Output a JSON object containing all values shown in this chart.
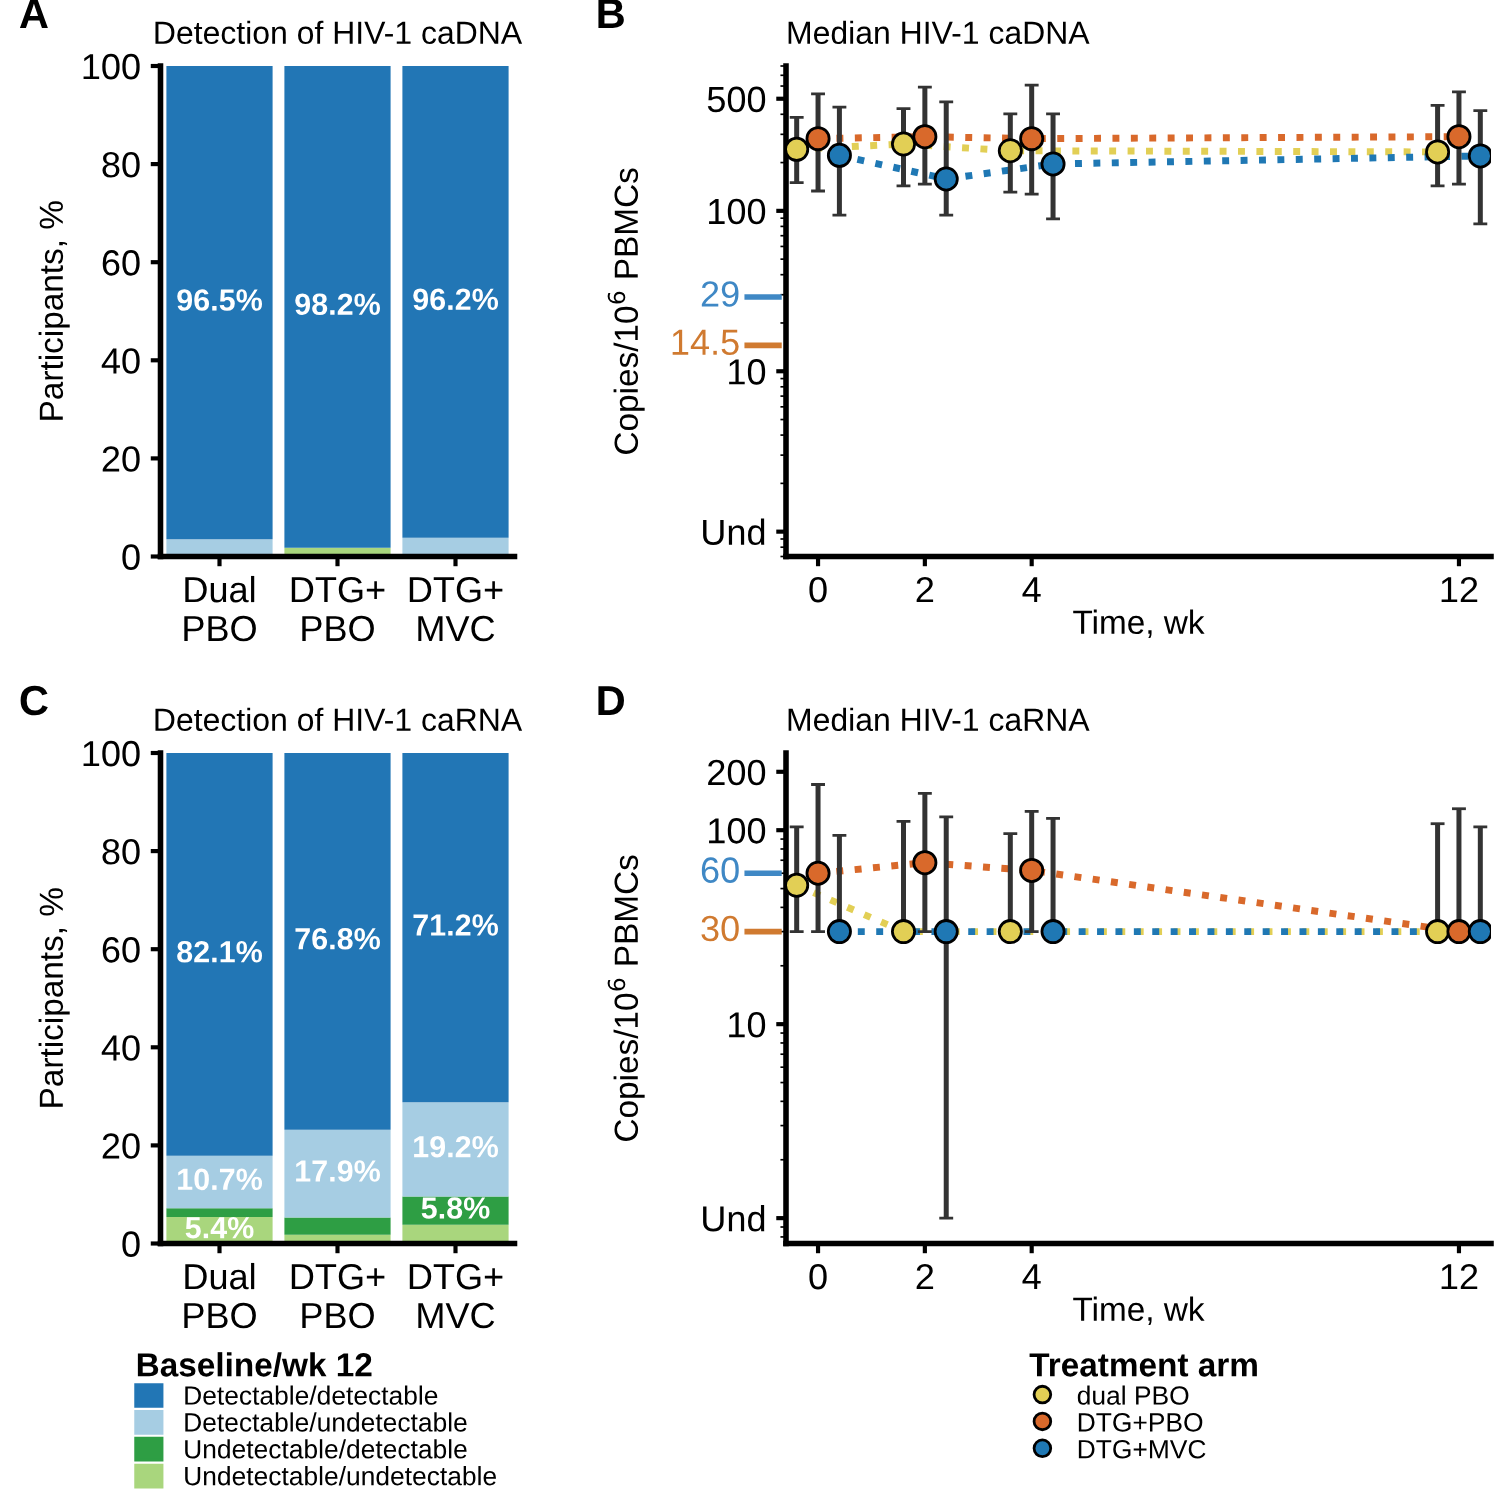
{
  "chart_data": [
    {
      "type": "bar",
      "title": "Detection of HIV-1 caDNA",
      "annotations": [
        "A"
      ],
      "categories": [
        "Dual\nPBO",
        "DTG+\nPBO",
        "DTG+\nMVC"
      ],
      "stacked": true,
      "ylabel": "Participants, %",
      "ylim": [
        0,
        100
      ],
      "yticks": [
        0,
        20,
        40,
        60,
        80,
        100
      ],
      "series": [
        {
          "color": "#a9d67d",
          "values": [
            0,
            1.8,
            0
          ],
          "value_labels": [
            null,
            null,
            null
          ]
        },
        {
          "color": "#2e9e44",
          "values": [
            0,
            0,
            0
          ],
          "value_labels": [
            null,
            null,
            null
          ]
        },
        {
          "color": "#a6cde3",
          "values": [
            3.5,
            0,
            3.8
          ],
          "value_labels": [
            null,
            null,
            null
          ]
        },
        {
          "color": "#2276b5",
          "values": [
            96.5,
            98.2,
            96.2
          ],
          "value_labels": [
            "96.5%",
            "98.2%",
            "96.2%"
          ]
        }
      ]
    },
    {
      "type": "line",
      "title": "Median HIV-1 caDNA",
      "annotations": [
        "B"
      ],
      "xlabel": "Time, wk",
      "ylabel": "Copies/10$^{6}$ PBMCs",
      "log": true,
      "xlim": [
        -0.6,
        12.6
      ],
      "xticks": [
        0,
        2,
        4,
        12
      ],
      "ylim": [
        0.7,
        800
      ],
      "yticks": [
        {
          "value": 1,
          "label": "Und"
        },
        10,
        100,
        500
      ],
      "marker": "circle",
      "line_style": "dotted",
      "legend": false,
      "ref_lines": [
        {
          "axis": "y",
          "value": 29,
          "label": "29",
          "color": "#3f88c5"
        },
        {
          "axis": "y",
          "value": 14.5,
          "label": "14.5",
          "color": "#d07a30"
        }
      ],
      "series": [
        {
          "color": "#e2cf55",
          "x": [
            -0.4,
            1.6,
            3.6,
            11.6
          ],
          "values": [
            242,
            261,
            237,
            233
          ],
          "errors": [
            [
              150,
              383
            ],
            [
              143,
              434
            ],
            [
              131,
              402
            ],
            [
              143,
              455
            ]
          ]
        },
        {
          "color": "#d9692b",
          "x": [
            0,
            2,
            4,
            12
          ],
          "values": [
            282,
            290,
            282,
            290
          ],
          "errors": [
            [
              133,
              536
            ],
            [
              147,
              590
            ],
            [
              127,
              607
            ],
            [
              147,
              552
            ]
          ]
        },
        {
          "color": "#1f78b4",
          "x": [
            0.4,
            2.4,
            4.4,
            12.4
          ],
          "values": [
            222,
            158,
            196,
            220
          ],
          "errors": [
            [
              94,
              443
            ],
            [
              94,
              478
            ],
            [
              89,
              402
            ],
            [
              83,
              422
            ]
          ]
        }
      ]
    },
    {
      "type": "bar",
      "title": "Detection of HIV-1 caRNA",
      "annotations": [
        "C"
      ],
      "categories": [
        "Dual\nPBO",
        "DTG+\nPBO",
        "DTG+\nMVC"
      ],
      "stacked": true,
      "ylabel": "Participants, %",
      "ylim": [
        0,
        100
      ],
      "yticks": [
        0,
        20,
        40,
        60,
        80,
        100
      ],
      "legend": "bottom",
      "legend_title": "Baseline/wk 12",
      "series": [
        {
          "name": "Undetectable/undetectable",
          "color": "#a9d67d",
          "values": [
            5.4,
            1.8,
            3.8
          ],
          "value_labels": [
            "5.4%",
            null,
            null
          ]
        },
        {
          "name": "Undetectable/detectable",
          "color": "#2e9e44",
          "values": [
            1.8,
            3.5,
            5.8
          ],
          "value_labels": [
            null,
            null,
            "5.8%"
          ]
        },
        {
          "name": "Detectable/undetectable",
          "color": "#a6cde3",
          "values": [
            10.7,
            17.9,
            19.2
          ],
          "value_labels": [
            "10.7%",
            "17.9%",
            "19.2%"
          ]
        },
        {
          "name": "Detectable/detectable",
          "color": "#2276b5",
          "values": [
            82.1,
            76.8,
            71.2
          ],
          "value_labels": [
            "82.1%",
            "76.8%",
            "71.2%"
          ]
        }
      ]
    },
    {
      "type": "line",
      "title": "Median HIV-1 caRNA",
      "annotations": [
        "D"
      ],
      "xlabel": "Time, wk",
      "ylabel": "Copies/10$^{6}$ PBMCs",
      "log": true,
      "xlim": [
        -0.6,
        12.6
      ],
      "xticks": [
        0,
        2,
        4,
        12
      ],
      "ylim": [
        0.74,
        250
      ],
      "yticks": [
        {
          "value": 1,
          "label": "Und"
        },
        10,
        100,
        200
      ],
      "marker": "circle",
      "line_style": "dotted",
      "legend": "bottom",
      "legend_title": "Treatment arm",
      "ref_lines": [
        {
          "axis": "y",
          "value": 60,
          "label": "60",
          "color": "#3f88c5"
        },
        {
          "axis": "y",
          "value": 30,
          "label": "30",
          "color": "#d07a30"
        }
      ],
      "series": [
        {
          "name": "dual PBO",
          "color": "#e2cf55",
          "x": [
            -0.4,
            1.6,
            3.6,
            11.6
          ],
          "values": [
            52,
            30,
            30,
            30
          ],
          "errors": [
            [
              30,
              104
            ],
            [
              30,
              111
            ],
            [
              30,
              96
            ],
            [
              30,
              108
            ]
          ]
        },
        {
          "name": "DTG+PBO",
          "color": "#d9692b",
          "x": [
            0,
            2,
            4,
            12
          ],
          "values": [
            60,
            68,
            62,
            30
          ],
          "errors": [
            [
              30,
              172
            ],
            [
              30,
              155
            ],
            [
              30,
              125
            ],
            [
              30,
              129
            ]
          ]
        },
        {
          "name": "DTG+MVC",
          "color": "#1f78b4",
          "x": [
            0.4,
            2.4,
            4.4,
            12.4
          ],
          "values": [
            30,
            30,
            30,
            30
          ],
          "errors": [
            [
              30,
              94
            ],
            [
              1,
              117
            ],
            [
              30,
              115
            ],
            [
              30,
              104
            ]
          ]
        }
      ]
    }
  ]
}
